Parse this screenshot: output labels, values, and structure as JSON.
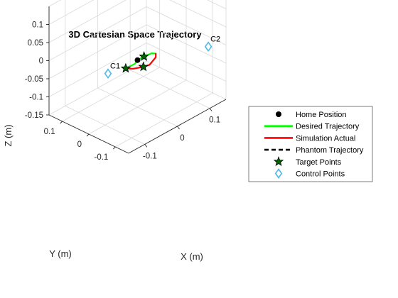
{
  "chart_data": {
    "type": "line",
    "title": "3D Cartesian Space Trajectory",
    "xlabel": "X (m)",
    "ylabel": "Y (m)",
    "zlabel": "Z (m)",
    "xlim": [
      -0.15,
      0.15
    ],
    "ylim": [
      -0.15,
      0.15
    ],
    "zlim": [
      -0.15,
      0.15
    ],
    "xticks": [
      -0.1,
      0,
      0.1
    ],
    "xticklabels": [
      "-0.1",
      "0",
      "0.1"
    ],
    "yticks": [
      -0.1,
      0,
      0.1
    ],
    "yticklabels": [
      "-0.1",
      "0",
      "0.1"
    ],
    "zticks": [
      -0.15,
      -0.1,
      -0.05,
      0,
      0.05,
      0.1
    ],
    "zticklabels": [
      "-0.15",
      "-0.1",
      "-0.05",
      "0",
      "0.05",
      "0.1"
    ],
    "grid": true,
    "legend_position": "right",
    "home_position": {
      "x": 0,
      "y": 0,
      "z": -0.02
    },
    "target_points": [
      {
        "x": -0.02,
        "y": 0.02,
        "z": -0.04
      },
      {
        "x": 0.01,
        "y": -0.01,
        "z": -0.04
      },
      {
        "x": 0.02,
        "y": 0.0,
        "z": -0.02
      }
    ],
    "control_points": [
      {
        "label": "C1",
        "x": -0.05,
        "y": 0.05,
        "z": -0.05
      },
      {
        "label": "C2",
        "x": 0.12,
        "y": -0.12,
        "z": 0.0
      }
    ],
    "series": [
      {
        "name": "Desired Trajectory",
        "color": "#00ff00",
        "style": "solid",
        "points": [
          {
            "x": -0.02,
            "y": 0.02,
            "z": -0.04
          },
          {
            "x": -0.005,
            "y": 0.005,
            "z": -0.03
          },
          {
            "x": 0.005,
            "y": 0.0,
            "z": -0.02
          },
          {
            "x": 0.02,
            "y": 0.0,
            "z": -0.02
          },
          {
            "x": 0.035,
            "y": -0.01,
            "z": -0.015
          },
          {
            "x": 0.04,
            "y": -0.02,
            "z": -0.015
          }
        ]
      },
      {
        "name": "Simulation Actual",
        "color": "#ff0000",
        "style": "solid",
        "points": [
          {
            "x": -0.02,
            "y": 0.02,
            "z": -0.04
          },
          {
            "x": -0.005,
            "y": 0.01,
            "z": -0.045
          },
          {
            "x": 0.01,
            "y": -0.01,
            "z": -0.04
          },
          {
            "x": 0.025,
            "y": -0.015,
            "z": -0.04
          },
          {
            "x": 0.04,
            "y": -0.02,
            "z": -0.025
          },
          {
            "x": 0.04,
            "y": -0.02,
            "z": -0.015
          }
        ]
      },
      {
        "name": "Phantom Trajectory",
        "color": "#000000",
        "style": "dashed",
        "points": []
      }
    ],
    "legend": [
      {
        "label": "Home Position",
        "marker": "dot",
        "color": "#000000"
      },
      {
        "label": "Desired Trajectory",
        "marker": "line",
        "color": "#00ff00"
      },
      {
        "label": "Simulation Actual",
        "marker": "line",
        "color": "#ff0000"
      },
      {
        "label": "Phantom Trajectory",
        "marker": "dashed",
        "color": "#000000"
      },
      {
        "label": "Target Points",
        "marker": "star",
        "color": "#006400"
      },
      {
        "label": "Control Points",
        "marker": "diamond",
        "color": "#4db8e8"
      }
    ]
  }
}
